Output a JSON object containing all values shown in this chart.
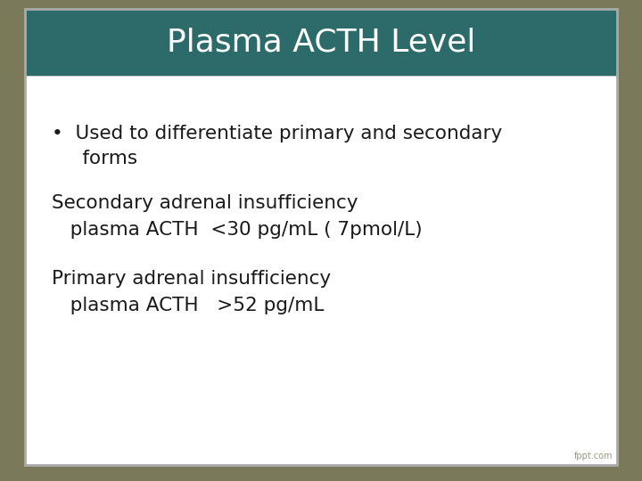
{
  "title": "Plasma ACTH Level",
  "title_color": "#ffffff",
  "title_bg_color": "#2d6b6b",
  "slide_bg_color": "#7a7a5a",
  "content_bg_color": "#ffffff",
  "bullet_line1": "•  Used to differentiate primary and secondary",
  "bullet_line2": "     forms",
  "section1_header": "Secondary adrenal insufficiency",
  "section1_detail": "   plasma ACTH  <30 pg/mL ( 7pmol/L)",
  "section2_header": "Primary adrenal insufficiency",
  "section2_detail": "   plasma ACTH   >52 pg/mL",
  "text_color": "#1a1a1a",
  "font_family": "DejaVu Sans",
  "title_fontsize": 26,
  "body_fontsize": 15.5,
  "watermark": "fppt.com",
  "watermark_color": "#999980",
  "watermark_fontsize": 7
}
